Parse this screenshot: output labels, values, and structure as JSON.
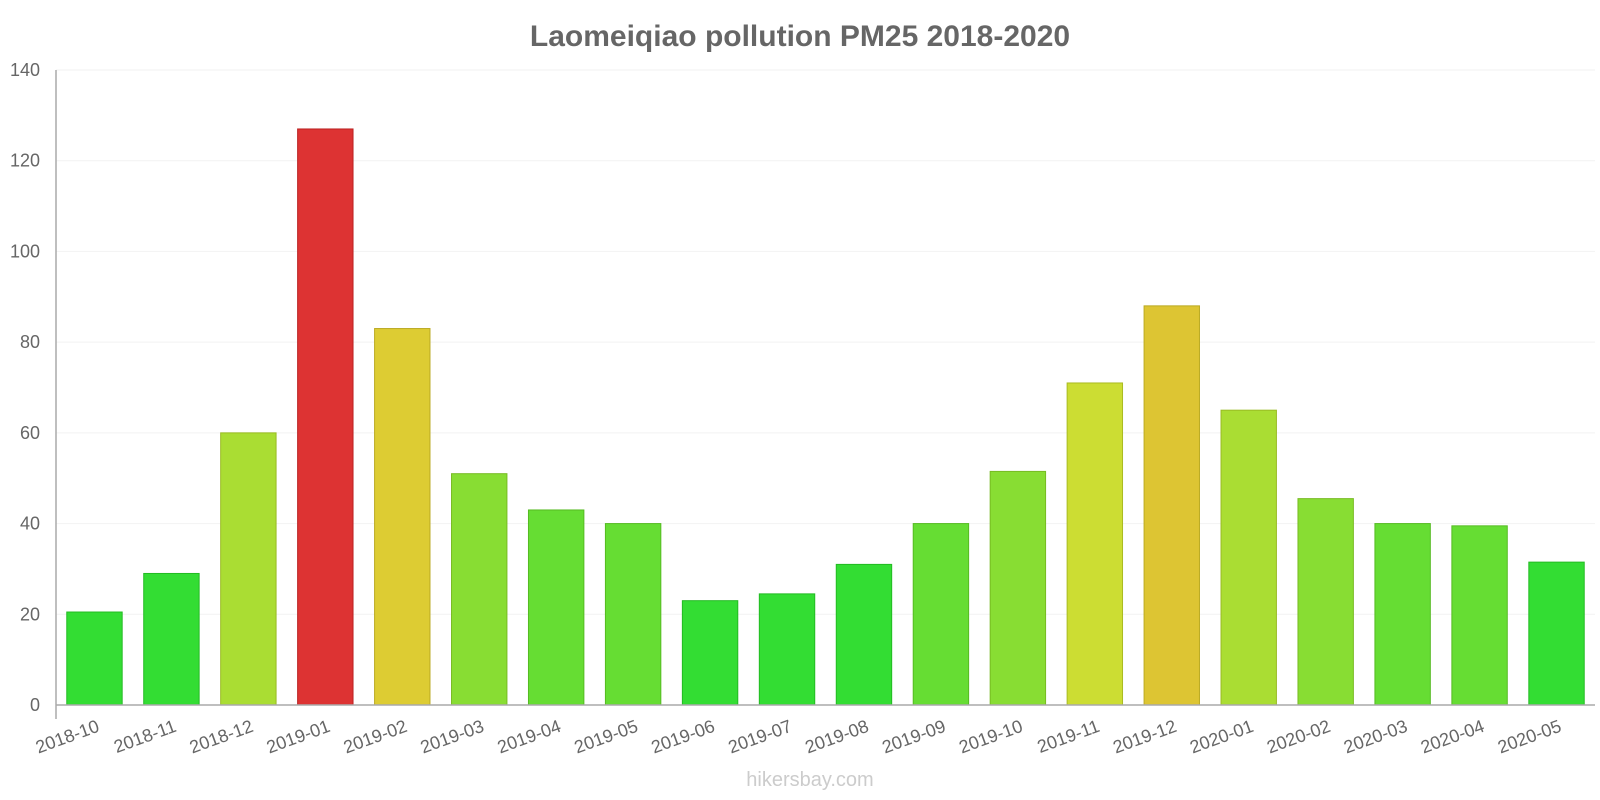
{
  "chart_data": {
    "type": "bar",
    "title": "Laomeiqiao pollution PM25 2018-2020",
    "xlabel": "",
    "ylabel": "",
    "ylim": [
      0,
      140
    ],
    "yticks": [
      0,
      20,
      40,
      60,
      80,
      100,
      120,
      140
    ],
    "categories": [
      "2018-10",
      "2018-11",
      "2018-12",
      "2019-01",
      "2019-02",
      "2019-03",
      "2019-04",
      "2019-05",
      "2019-06",
      "2019-07",
      "2019-08",
      "2019-09",
      "2019-10",
      "2019-11",
      "2019-12",
      "2020-01",
      "2020-02",
      "2020-03",
      "2020-04",
      "2020-05"
    ],
    "values": [
      20.5,
      29,
      60,
      127,
      83,
      51,
      43,
      40,
      23,
      24.5,
      31,
      40,
      51.5,
      71,
      88,
      65,
      45.5,
      40,
      39.5,
      31.5
    ],
    "bar_colors": [
      "#33dd33",
      "#33dd33",
      "#aadd33",
      "#dd3333",
      "#ddcc33",
      "#88dd33",
      "#66dd33",
      "#66dd33",
      "#33dd33",
      "#33dd33",
      "#33dd33",
      "#66dd33",
      "#88dd33",
      "#ccdd33",
      "#ddc533",
      "#aadd33",
      "#88dd33",
      "#66dd33",
      "#66dd33",
      "#33dd33"
    ],
    "bar_border_colors": [
      "#22bb22",
      "#22bb22",
      "#99bb22",
      "#bb2222",
      "#bbaa22",
      "#77bb22",
      "#55bb22",
      "#55bb22",
      "#22bb22",
      "#22bb22",
      "#22bb22",
      "#55bb22",
      "#77bb22",
      "#aabb22",
      "#bbaa22",
      "#99bb22",
      "#77bb22",
      "#55bb22",
      "#55bb22",
      "#22bb22"
    ]
  },
  "watermark": "hikersbay.com"
}
